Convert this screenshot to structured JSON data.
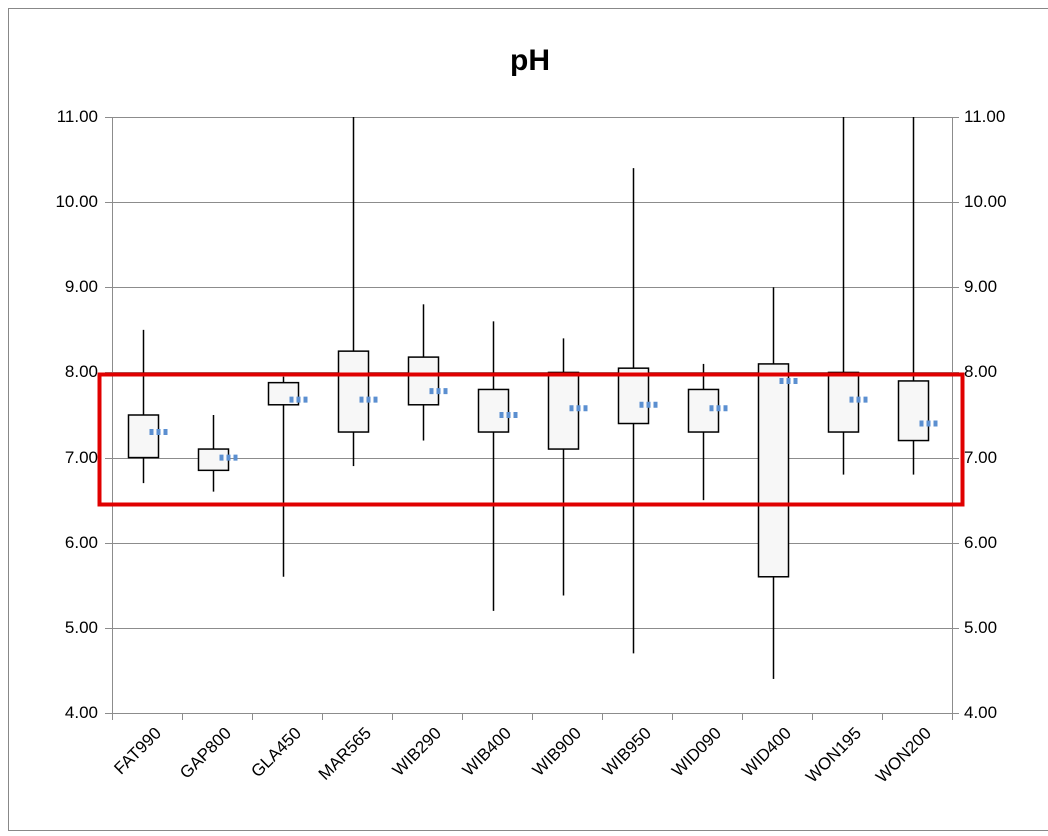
{
  "chart_data": {
    "type": "box",
    "title": "pH",
    "categories": [
      "FAT990",
      "GAP800",
      "GLA450",
      "MAR565",
      "WIB290",
      "WIB400",
      "WIB900",
      "WIB950",
      "WID090",
      "WID400",
      "WON195",
      "WON200"
    ],
    "high": [
      8.5,
      7.5,
      7.95,
      11,
      8.8,
      8.6,
      8.4,
      10.4,
      8.1,
      9.0,
      11,
      11
    ],
    "q3": [
      7.5,
      7.1,
      7.88,
      8.25,
      8.18,
      7.8,
      8.0,
      8.05,
      7.8,
      8.1,
      8.0,
      7.9
    ],
    "q1": [
      7.0,
      6.85,
      7.62,
      7.3,
      7.62,
      7.3,
      7.1,
      7.4,
      7.3,
      5.6,
      7.3,
      7.2
    ],
    "low": [
      6.7,
      6.6,
      5.6,
      6.9,
      7.2,
      5.2,
      5.38,
      4.7,
      6.5,
      4.4,
      6.8,
      6.8
    ],
    "mean": [
      7.3,
      7.0,
      7.68,
      7.68,
      7.78,
      7.5,
      7.58,
      7.62,
      7.58,
      7.9,
      7.68,
      7.4
    ],
    "box_color": "#f7f7f7",
    "mean_color": "#5b8fd0",
    "ylim": [
      4,
      11
    ],
    "yticks": [
      {
        "value": 4,
        "label": "4.00"
      },
      {
        "value": 5,
        "label": "5.00"
      },
      {
        "value": 6,
        "label": "6.00"
      },
      {
        "value": 7,
        "label": "7.00"
      },
      {
        "value": 8,
        "label": "8.00"
      },
      {
        "value": 9,
        "label": "9.00"
      },
      {
        "value": 10,
        "label": "10.00"
      },
      {
        "value": 11,
        "label": "11.00"
      }
    ],
    "y2lim": [
      4,
      11
    ],
    "y2ticks": [
      {
        "value": 4,
        "label": "4.00"
      },
      {
        "value": 5,
        "label": "5.00"
      },
      {
        "value": 6,
        "label": "6.00"
      },
      {
        "value": 7,
        "label": "7.00"
      },
      {
        "value": 8,
        "label": "8.00"
      },
      {
        "value": 9,
        "label": "9.00"
      },
      {
        "value": 10,
        "label": "10.00"
      },
      {
        "value": 11,
        "label": "11.00"
      }
    ],
    "grid": true
  }
}
